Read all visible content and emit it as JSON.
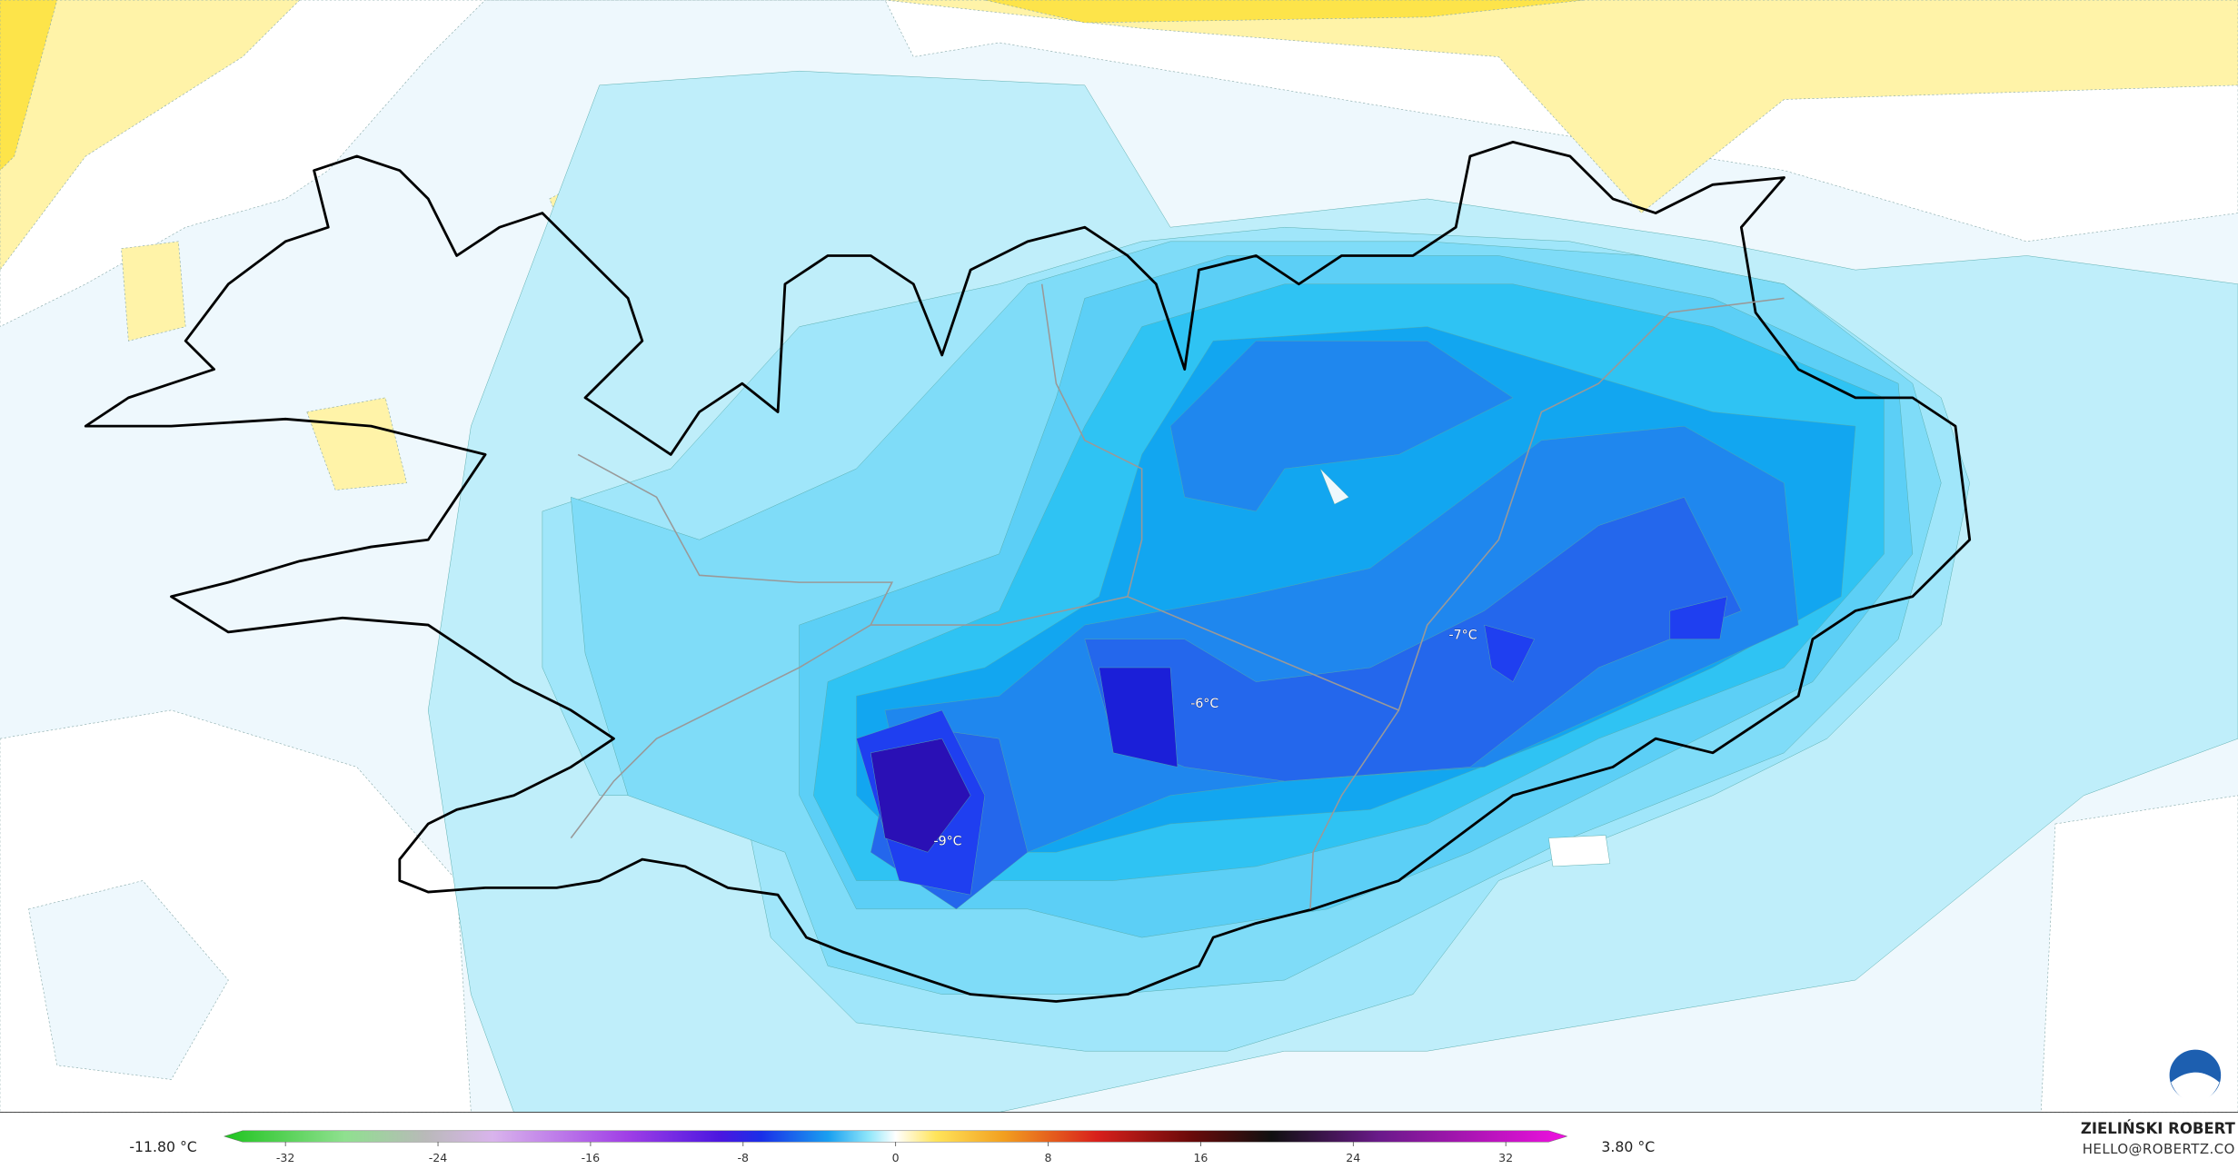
{
  "map_labels": [
    "-9°C",
    "-6°C",
    "-7°C"
  ],
  "legend": {
    "min_label": "-11.80 °C",
    "max_label": "3.80 °C",
    "ticks": [
      -32,
      -24,
      -16,
      -8,
      0,
      8,
      16,
      24,
      32
    ]
  },
  "credit": {
    "name": "ZIELIŃSKI ROBERT",
    "email": "HELLO@ROBERTZ.CO"
  }
}
